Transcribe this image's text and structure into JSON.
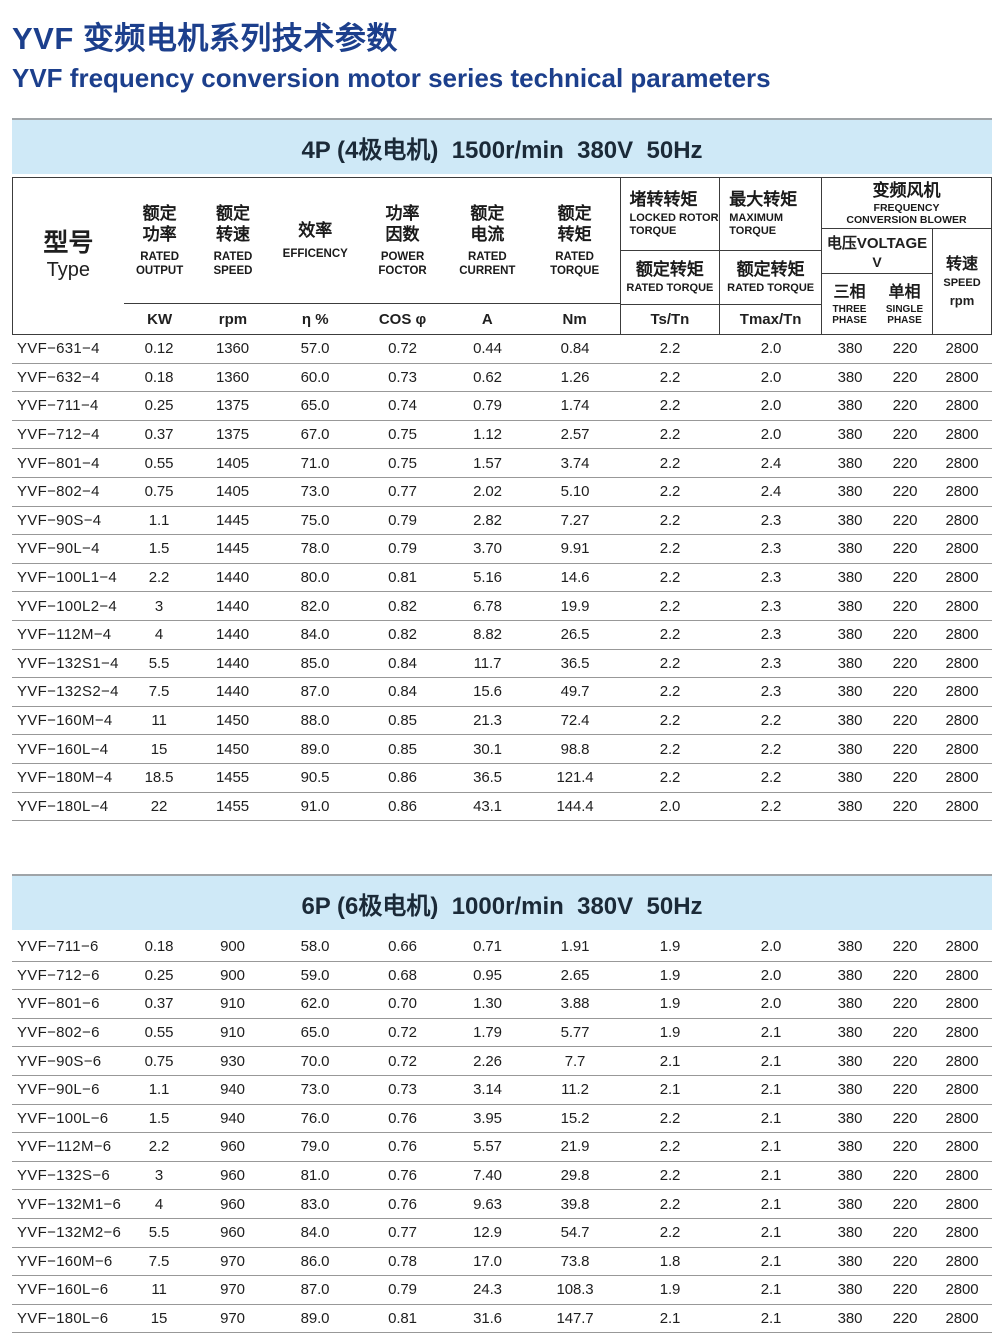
{
  "colors": {
    "title_blue": "#1c3f8c",
    "band_background": "#cfe9f7",
    "band_text": "#1b2a38"
  },
  "page_title": {
    "cn": "YVF 变频电机系列技术参数",
    "en": "YVF frequency conversion motor series technical parameters"
  },
  "header": {
    "type_cn": "型号",
    "type_en": "Type",
    "simple_cols": [
      {
        "cn": "额定功率",
        "en": "RATED OUTPUT",
        "unit": "KW"
      },
      {
        "cn": "额定转速",
        "en": "RATED SPEED",
        "unit": "rpm"
      },
      {
        "cn": "效率",
        "en": "EFFICENCY",
        "unit": "η %"
      },
      {
        "cn": "功率因数",
        "en": "POWER FOCTOR",
        "unit": "COS φ"
      },
      {
        "cn": "额定电流",
        "en": "RATED CURRENT",
        "unit": "A"
      },
      {
        "cn": "额定转矩",
        "en": "RATED TORQUE",
        "unit": "Nm"
      }
    ],
    "locked_rotor": {
      "cn": "堵转转矩",
      "en": "LOCKED ROTOR TORQUE",
      "sub_cn": "额定转矩",
      "sub_en": "RATED TORQUE",
      "unit": "Ts/Tn"
    },
    "maximum": {
      "cn": "最大转矩",
      "en": "MAXIMUM TORQUE",
      "sub_cn": "额定转矩",
      "sub_en": "RATED TORQUE",
      "unit": "Tmax/Tn"
    },
    "blower": {
      "cn": "变频风机",
      "en1": "FREQUENCY",
      "en2": "CONVERSION BLOWER",
      "voltage_label": "电压VOLTAGE",
      "voltage_unit": "V",
      "three_cn": "三相",
      "three_en1": "THREE",
      "three_en2": "PHASE",
      "single_cn": "单相",
      "single_en1": "SINGLE",
      "single_en2": "PHASE",
      "speed_cn": "转速",
      "speed_en": "SPEED",
      "speed_unit": "rpm"
    }
  },
  "sections": [
    {
      "id": "4p",
      "band": "4P (4极电机)  1500r/min  380V  50Hz",
      "rows": [
        [
          "YVF−631−4",
          "0.12",
          "1360",
          "57.0",
          "0.72",
          "0.44",
          "0.84",
          "2.2",
          "2.0",
          "380",
          "220",
          "2800"
        ],
        [
          "YVF−632−4",
          "0.18",
          "1360",
          "60.0",
          "0.73",
          "0.62",
          "1.26",
          "2.2",
          "2.0",
          "380",
          "220",
          "2800"
        ],
        [
          "YVF−711−4",
          "0.25",
          "1375",
          "65.0",
          "0.74",
          "0.79",
          "1.74",
          "2.2",
          "2.0",
          "380",
          "220",
          "2800"
        ],
        [
          "YVF−712−4",
          "0.37",
          "1375",
          "67.0",
          "0.75",
          "1.12",
          "2.57",
          "2.2",
          "2.0",
          "380",
          "220",
          "2800"
        ],
        [
          "YVF−801−4",
          "0.55",
          "1405",
          "71.0",
          "0.75",
          "1.57",
          "3.74",
          "2.2",
          "2.4",
          "380",
          "220",
          "2800"
        ],
        [
          "YVF−802−4",
          "0.75",
          "1405",
          "73.0",
          "0.77",
          "2.02",
          "5.10",
          "2.2",
          "2.4",
          "380",
          "220",
          "2800"
        ],
        [
          "YVF−90S−4",
          "1.1",
          "1445",
          "75.0",
          "0.79",
          "2.82",
          "7.27",
          "2.2",
          "2.3",
          "380",
          "220",
          "2800"
        ],
        [
          "YVF−90L−4",
          "1.5",
          "1445",
          "78.0",
          "0.79",
          "3.70",
          "9.91",
          "2.2",
          "2.3",
          "380",
          "220",
          "2800"
        ],
        [
          "YVF−100L1−4",
          "2.2",
          "1440",
          "80.0",
          "0.81",
          "5.16",
          "14.6",
          "2.2",
          "2.3",
          "380",
          "220",
          "2800"
        ],
        [
          "YVF−100L2−4",
          "3",
          "1440",
          "82.0",
          "0.82",
          "6.78",
          "19.9",
          "2.2",
          "2.3",
          "380",
          "220",
          "2800"
        ],
        [
          "YVF−112M−4",
          "4",
          "1440",
          "84.0",
          "0.82",
          "8.82",
          "26.5",
          "2.2",
          "2.3",
          "380",
          "220",
          "2800"
        ],
        [
          "YVF−132S1−4",
          "5.5",
          "1440",
          "85.0",
          "0.84",
          "11.7",
          "36.5",
          "2.2",
          "2.3",
          "380",
          "220",
          "2800"
        ],
        [
          "YVF−132S2−4",
          "7.5",
          "1440",
          "87.0",
          "0.84",
          "15.6",
          "49.7",
          "2.2",
          "2.3",
          "380",
          "220",
          "2800"
        ],
        [
          "YVF−160M−4",
          "11",
          "1450",
          "88.0",
          "0.85",
          "21.3",
          "72.4",
          "2.2",
          "2.2",
          "380",
          "220",
          "2800"
        ],
        [
          "YVF−160L−4",
          "15",
          "1450",
          "89.0",
          "0.85",
          "30.1",
          "98.8",
          "2.2",
          "2.2",
          "380",
          "220",
          "2800"
        ],
        [
          "YVF−180M−4",
          "18.5",
          "1455",
          "90.5",
          "0.86",
          "36.5",
          "121.4",
          "2.2",
          "2.2",
          "380",
          "220",
          "2800"
        ],
        [
          "YVF−180L−4",
          "22",
          "1455",
          "91.0",
          "0.86",
          "43.1",
          "144.4",
          "2.0",
          "2.2",
          "380",
          "220",
          "2800"
        ]
      ]
    },
    {
      "id": "6p",
      "band": "6P (6极电机)  1000r/min  380V  50Hz",
      "rows": [
        [
          "YVF−711−6",
          "0.18",
          "900",
          "58.0",
          "0.66",
          "0.71",
          "1.91",
          "1.9",
          "2.0",
          "380",
          "220",
          "2800"
        ],
        [
          "YVF−712−6",
          "0.25",
          "900",
          "59.0",
          "0.68",
          "0.95",
          "2.65",
          "1.9",
          "2.0",
          "380",
          "220",
          "2800"
        ],
        [
          "YVF−801−6",
          "0.37",
          "910",
          "62.0",
          "0.70",
          "1.30",
          "3.88",
          "1.9",
          "2.0",
          "380",
          "220",
          "2800"
        ],
        [
          "YVF−802−6",
          "0.55",
          "910",
          "65.0",
          "0.72",
          "1.79",
          "5.77",
          "1.9",
          "2.1",
          "380",
          "220",
          "2800"
        ],
        [
          "YVF−90S−6",
          "0.75",
          "930",
          "70.0",
          "0.72",
          "2.26",
          "7.7",
          "2.1",
          "2.1",
          "380",
          "220",
          "2800"
        ],
        [
          "YVF−90L−6",
          "1.1",
          "940",
          "73.0",
          "0.73",
          "3.14",
          "11.2",
          "2.1",
          "2.1",
          "380",
          "220",
          "2800"
        ],
        [
          "YVF−100L−6",
          "1.5",
          "940",
          "76.0",
          "0.76",
          "3.95",
          "15.2",
          "2.2",
          "2.1",
          "380",
          "220",
          "2800"
        ],
        [
          "YVF−112M−6",
          "2.2",
          "960",
          "79.0",
          "0.76",
          "5.57",
          "21.9",
          "2.2",
          "2.1",
          "380",
          "220",
          "2800"
        ],
        [
          "YVF−132S−6",
          "3",
          "960",
          "81.0",
          "0.76",
          "7.40",
          "29.8",
          "2.2",
          "2.1",
          "380",
          "220",
          "2800"
        ],
        [
          "YVF−132M1−6",
          "4",
          "960",
          "83.0",
          "0.76",
          "9.63",
          "39.8",
          "2.2",
          "2.1",
          "380",
          "220",
          "2800"
        ],
        [
          "YVF−132M2−6",
          "5.5",
          "960",
          "84.0",
          "0.77",
          "12.9",
          "54.7",
          "2.2",
          "2.1",
          "380",
          "220",
          "2800"
        ],
        [
          "YVF−160M−6",
          "7.5",
          "970",
          "86.0",
          "0.78",
          "17.0",
          "73.8",
          "1.8",
          "2.1",
          "380",
          "220",
          "2800"
        ],
        [
          "YVF−160L−6",
          "11",
          "970",
          "87.0",
          "0.79",
          "24.3",
          "108.3",
          "1.9",
          "2.1",
          "380",
          "220",
          "2800"
        ],
        [
          "YVF−180L−6",
          "15",
          "970",
          "89.0",
          "0.81",
          "31.6",
          "147.7",
          "2.1",
          "2.1",
          "380",
          "220",
          "2800"
        ]
      ]
    }
  ]
}
